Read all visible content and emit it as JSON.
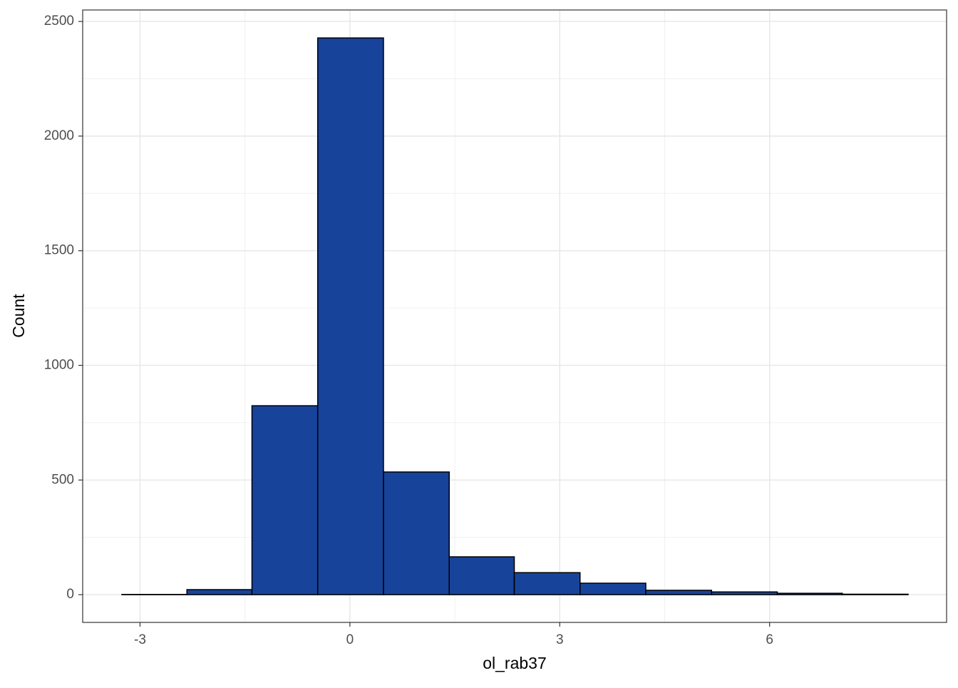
{
  "chart_data": {
    "type": "histogram",
    "xlabel": "ol_rab37",
    "ylabel": "Count",
    "bins": [
      -3.26,
      -2.33,
      -1.4,
      -0.46,
      0.48,
      1.42,
      2.35,
      3.29,
      4.23,
      5.17,
      6.11,
      7.04,
      7.98
    ],
    "values": [
      1,
      22,
      824,
      2428,
      535,
      165,
      96,
      50,
      19,
      12,
      6,
      2
    ],
    "color": "#18439a",
    "xlim": [
      -3.82,
      8.53
    ],
    "ylim": [
      -121,
      2550
    ],
    "xticks": [
      -3,
      0,
      3,
      6
    ],
    "yticks": [
      0,
      500,
      1000,
      1500,
      2000,
      2500
    ],
    "grid": true
  }
}
